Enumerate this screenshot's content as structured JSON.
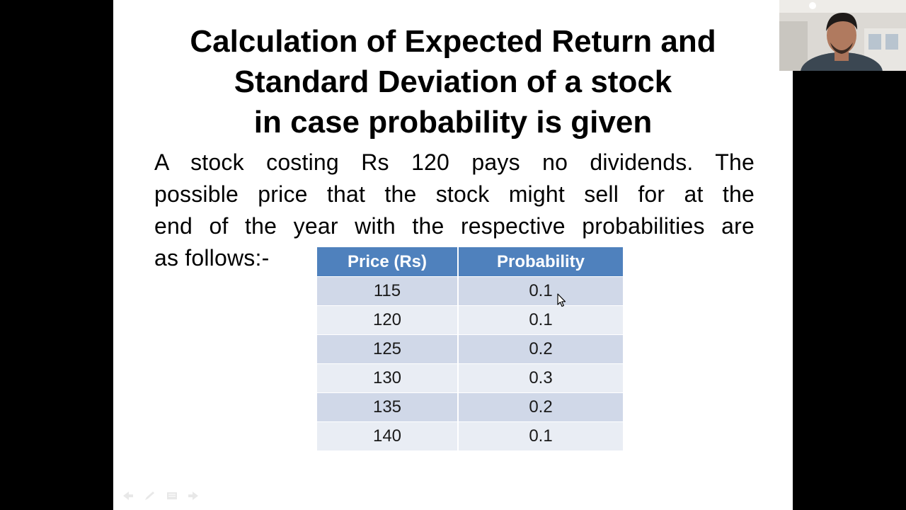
{
  "slide": {
    "title_lines": [
      "Calculation of Expected Return and",
      "Standard Deviation of a stock",
      "in case probability is given"
    ],
    "body_lines": [
      "A stock costing Rs 120 pays no dividends. The",
      "possible price that the stock might sell for at the",
      "end of the year with the respective probabilities are",
      "as follows:-"
    ],
    "table": {
      "headers": [
        "Price (Rs)",
        "Probability"
      ],
      "rows": [
        [
          "115",
          "0.1"
        ],
        [
          "120",
          "0.1"
        ],
        [
          "125",
          "0.2"
        ],
        [
          "130",
          "0.3"
        ],
        [
          "135",
          "0.2"
        ],
        [
          "140",
          "0.1"
        ]
      ]
    }
  },
  "nav_controls": [
    "previous-slide-icon",
    "pen-icon",
    "slide-menu-icon",
    "next-slide-icon"
  ],
  "webcam": {
    "description_icon": "presenter-video-feed"
  },
  "colors": {
    "header_bg": "#4f81bd",
    "row_odd_bg": "#d0d8e8",
    "row_even_bg": "#e9edf4",
    "slide_bg": "#ffffff",
    "outer_bg": "#000000"
  }
}
